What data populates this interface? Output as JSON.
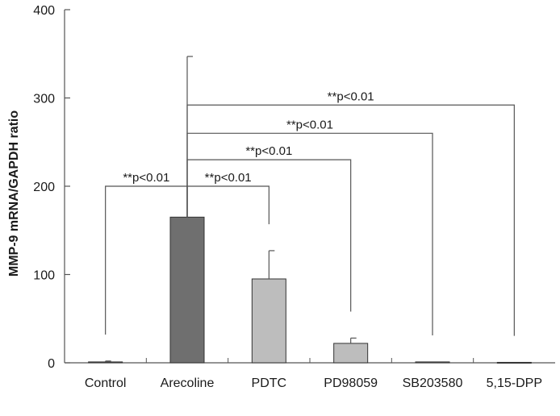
{
  "chart_data": {
    "type": "bar",
    "categories": [
      "Control",
      "Arecoline",
      "PDTC",
      "PD98059",
      "SB203580",
      "5,15-DPP"
    ],
    "values": [
      1,
      165,
      95,
      22,
      1,
      0.5
    ],
    "errors": [
      1,
      182,
      32,
      6,
      0.5,
      0.3
    ],
    "bar_colors": [
      "#8a8a8a",
      "#6f6f6f",
      "#bdbdbd",
      "#bdbdbd",
      "#bdbdbd",
      "#bdbdbd"
    ],
    "ylabel": "MMP-9 mRNA/GAPDH ratio",
    "ylim": [
      0,
      400
    ],
    "yticks": [
      0,
      100,
      200,
      300,
      400
    ],
    "grid": false,
    "annotations": [
      {
        "from": "Control",
        "to": "Arecoline",
        "label": "**p<0.01",
        "level": 200
      },
      {
        "from": "Arecoline",
        "to": "PDTC",
        "label": "**p<0.01",
        "level": 200
      },
      {
        "from": "Arecoline",
        "to": "PD98059",
        "label": "**p<0.01",
        "level": 230
      },
      {
        "from": "Arecoline",
        "to": "SB203580",
        "label": "**p<0.01",
        "level": 260
      },
      {
        "from": "Arecoline",
        "to": "5,15-DPP",
        "label": "**p<0.01",
        "level": 292
      }
    ]
  }
}
